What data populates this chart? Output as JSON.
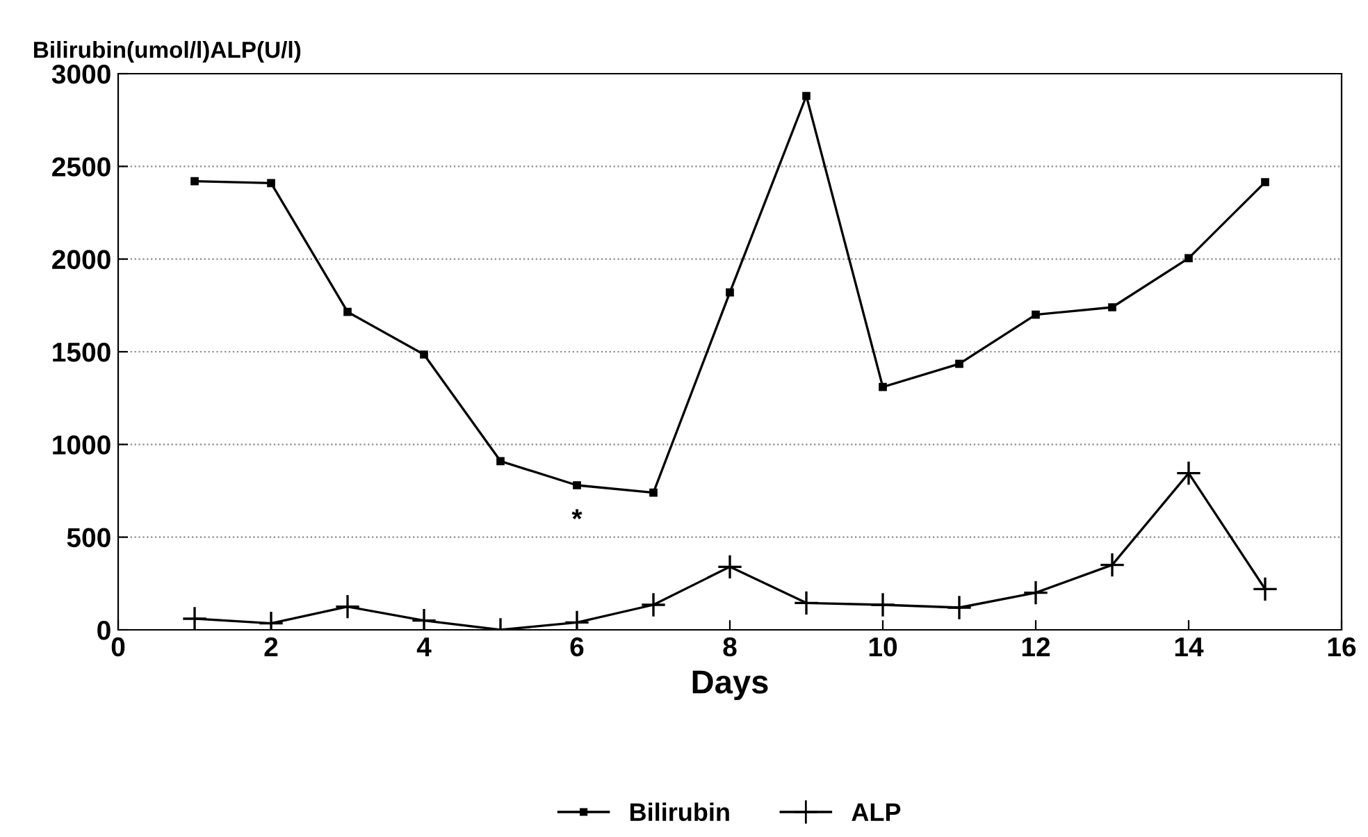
{
  "chart_data": {
    "type": "line",
    "ylabel": "Bilirubin(umol/l)ALP(U/l)",
    "xlabel": "Days",
    "x": [
      1,
      2,
      3,
      4,
      5,
      6,
      7,
      8,
      9,
      10,
      11,
      12,
      13,
      14,
      15
    ],
    "series": [
      {
        "name": "Bilirubin",
        "color": "#000000",
        "marker": "square",
        "values": [
          2420,
          2410,
          1715,
          1485,
          910,
          780,
          740,
          1820,
          2880,
          1310,
          1435,
          1700,
          1740,
          2005,
          2415
        ]
      },
      {
        "name": "ALP",
        "color": "#000000",
        "marker": "cross",
        "values": [
          60,
          35,
          125,
          50,
          0,
          40,
          135,
          340,
          145,
          135,
          120,
          200,
          350,
          845,
          220
        ]
      }
    ],
    "annotations": [
      "*"
    ],
    "xlim": [
      0,
      16
    ],
    "xticks": [
      0,
      2,
      4,
      6,
      8,
      10,
      12,
      14,
      16
    ],
    "ylim": [
      0,
      3000
    ],
    "yticks": [
      0,
      500,
      1000,
      1500,
      2000,
      2500,
      3000
    ],
    "grid": "y",
    "legend": "bottom",
    "line_style": "solid"
  }
}
